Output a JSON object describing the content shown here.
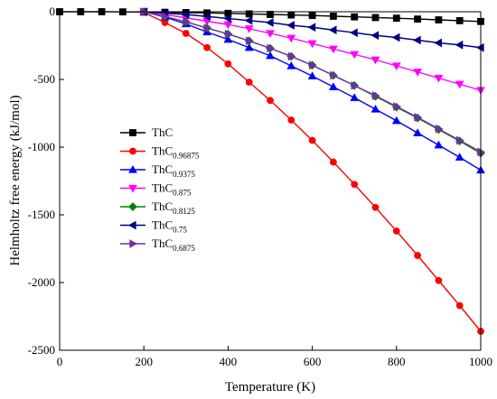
{
  "chart_data": {
    "type": "line",
    "xlabel": "Temperature (K)",
    "ylabel": "Helmholtz free energy (kJ/mol)",
    "xlim": [
      0,
      1000
    ],
    "ylim": [
      -2500,
      0
    ],
    "xticks": [
      0,
      200,
      400,
      600,
      800,
      1000
    ],
    "yticks": [
      0,
      -500,
      -1000,
      -1500,
      -2000,
      -2500
    ],
    "grid": false,
    "legend_position": "center-left",
    "series": [
      {
        "base": "ThC",
        "sub": "",
        "color": "#000000",
        "marker": "square",
        "x": [
          0,
          50,
          100,
          150,
          200,
          250,
          300,
          350,
          400,
          450,
          500,
          550,
          600,
          650,
          700,
          750,
          800,
          850,
          900,
          950,
          1000
        ],
        "y": [
          0,
          0,
          0,
          -1,
          -2,
          -4,
          -6,
          -9,
          -12,
          -16,
          -20,
          -24,
          -28,
          -33,
          -38,
          -43,
          -48,
          -54,
          -60,
          -66,
          -72
        ]
      },
      {
        "base": "ThC",
        "sub": "0.96875",
        "color": "#ff0000",
        "marker": "circle",
        "x": [
          200,
          250,
          300,
          350,
          400,
          450,
          500,
          550,
          600,
          650,
          700,
          750,
          800,
          850,
          900,
          950,
          1000
        ],
        "y": [
          -5,
          -80,
          -160,
          -265,
          -385,
          -520,
          -655,
          -800,
          -950,
          -1110,
          -1275,
          -1445,
          -1620,
          -1800,
          -1985,
          -2170,
          -2360
        ]
      },
      {
        "base": "ThC",
        "sub": "0.9375",
        "color": "#0000ff",
        "marker": "triangle-up",
        "x": [
          200,
          250,
          300,
          350,
          400,
          450,
          500,
          550,
          600,
          650,
          700,
          750,
          800,
          850,
          900,
          950,
          1000
        ],
        "y": [
          0,
          -40,
          -90,
          -150,
          -205,
          -265,
          -325,
          -400,
          -475,
          -555,
          -635,
          -720,
          -805,
          -895,
          -985,
          -1075,
          -1170
        ]
      },
      {
        "base": "ThC",
        "sub": "0.875",
        "color": "#ff00ff",
        "marker": "triangle-down",
        "x": [
          200,
          250,
          300,
          350,
          400,
          450,
          500,
          550,
          600,
          650,
          700,
          750,
          800,
          850,
          900,
          950,
          1000
        ],
        "y": [
          0,
          -20,
          -45,
          -70,
          -95,
          -125,
          -160,
          -195,
          -235,
          -275,
          -315,
          -355,
          -400,
          -445,
          -490,
          -535,
          -580
        ]
      },
      {
        "base": "ThC",
        "sub": "0.8125",
        "color": "#008000",
        "marker": "diamond",
        "x": [
          200,
          250,
          300,
          350,
          400,
          450,
          500,
          550,
          600,
          650,
          700,
          750,
          800,
          850,
          900,
          950,
          1000
        ],
        "y": [
          0,
          -35,
          -75,
          -120,
          -165,
          -215,
          -270,
          -330,
          -395,
          -470,
          -545,
          -625,
          -705,
          -785,
          -870,
          -955,
          -1045
        ]
      },
      {
        "base": "ThC",
        "sub": "0.75",
        "color": "#000080",
        "marker": "triangle-left",
        "x": [
          200,
          250,
          300,
          350,
          400,
          450,
          500,
          550,
          600,
          650,
          700,
          750,
          800,
          850,
          900,
          950,
          1000
        ],
        "y": [
          0,
          -10,
          -20,
          -35,
          -50,
          -65,
          -80,
          -100,
          -115,
          -135,
          -155,
          -175,
          -190,
          -210,
          -230,
          -245,
          -265
        ]
      },
      {
        "base": "ThC",
        "sub": "0.6875",
        "color": "#7030a0",
        "marker": "triangle-right",
        "x": [
          200,
          250,
          300,
          350,
          400,
          450,
          500,
          550,
          600,
          650,
          700,
          750,
          800,
          850,
          900,
          950,
          1000
        ],
        "y": [
          0,
          -35,
          -75,
          -120,
          -165,
          -215,
          -270,
          -330,
          -395,
          -470,
          -545,
          -620,
          -700,
          -780,
          -865,
          -950,
          -1035
        ]
      }
    ]
  }
}
